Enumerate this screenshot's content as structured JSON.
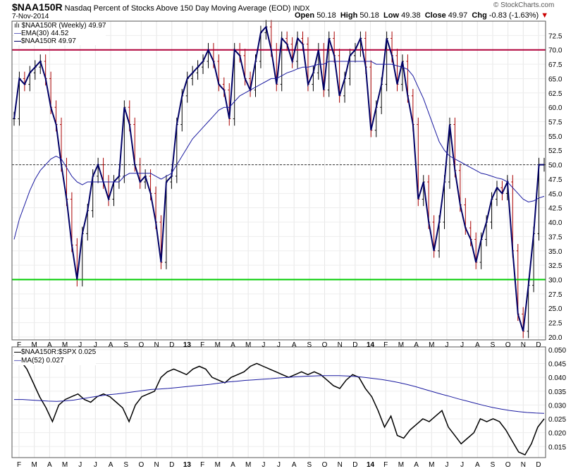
{
  "header": {
    "symbol": "$NAA150R",
    "description": "Nasdaq Percent of Stocks Above 150 Day Moving Average (EOD)",
    "exchange": "INDX",
    "date": "7-Nov-2014",
    "open_label": "Open",
    "open": "50.18",
    "high_label": "High",
    "high": "50.18",
    "low_label": "Low",
    "low": "49.38",
    "close_label": "Close",
    "close": "49.97",
    "chg_label": "Chg",
    "chg": "-0.83 (-1.63%)",
    "watermark": "© StockCharts.com"
  },
  "chart_data": [
    {
      "type": "ohlc-line",
      "legend": {
        "main": "$NAA150R (Weekly) 49.97",
        "ema": "EMA(30) 44.52",
        "line": "$NAA150R 49.97"
      },
      "colors": {
        "price": "#000066",
        "ema": "#1a1aa0",
        "resistance": "#b0003a",
        "support": "#00cc00",
        "bar_up": "#000000",
        "bar_down": "#aa0000"
      },
      "ylim": [
        19.5,
        75
      ],
      "y_ticks": [
        "72.5",
        "70.0",
        "67.5",
        "65.0",
        "62.5",
        "60.0",
        "57.5",
        "55.0",
        "52.5",
        "50.0",
        "47.5",
        "45.0",
        "42.5",
        "40.0",
        "37.5",
        "35.0",
        "32.5",
        "30.0",
        "27.5",
        "25.0",
        "22.5",
        "20.0"
      ],
      "horizontal_lines": {
        "resistance": 70,
        "support": 30,
        "reference_dashed": 50
      },
      "x_labels": [
        "F",
        "M",
        "A",
        "M",
        "J",
        "J",
        "A",
        "S",
        "O",
        "N",
        "D",
        "13",
        "F",
        "M",
        "A",
        "M",
        "J",
        "J",
        "A",
        "S",
        "O",
        "N",
        "D",
        "14",
        "F",
        "M",
        "A",
        "M",
        "J",
        "J",
        "A",
        "S",
        "O",
        "N",
        "D"
      ],
      "close": [
        58,
        65,
        64,
        66,
        67,
        68,
        65,
        60,
        57,
        50,
        44,
        36,
        30,
        38,
        42,
        48,
        50,
        47,
        44,
        47,
        48,
        60,
        57,
        50,
        47,
        48,
        45,
        40,
        33,
        47,
        48,
        57,
        62,
        65,
        66,
        67,
        68,
        70,
        68,
        64,
        63,
        58,
        70,
        69,
        65,
        63,
        68,
        73,
        74,
        70,
        64,
        72,
        71,
        68,
        72,
        71,
        64,
        66,
        70,
        63,
        72,
        69,
        62,
        65,
        69,
        70,
        72,
        67,
        56,
        60,
        64,
        72,
        69,
        64,
        68,
        62,
        57,
        44,
        47,
        40,
        35,
        40,
        47,
        57,
        49,
        43,
        39,
        37,
        33,
        37,
        40,
        44,
        46,
        45,
        47,
        35,
        24,
        21,
        29,
        38,
        50,
        50
      ],
      "ema": [
        37,
        40.5,
        43,
        45.5,
        47.5,
        49,
        50,
        51,
        51.5,
        51,
        49.5,
        48,
        47,
        46.5,
        47,
        47,
        47,
        47,
        47,
        47,
        47,
        48,
        48.5,
        48.5,
        48.5,
        48.5,
        48.5,
        48,
        47.5,
        48,
        48.5,
        50,
        51.5,
        53,
        54.5,
        55.5,
        56.5,
        57.5,
        58.5,
        59.5,
        60,
        60,
        61,
        62,
        62.5,
        63,
        63.5,
        64,
        64.5,
        65,
        65,
        65.5,
        66,
        66.3,
        66.7,
        67,
        67,
        67.2,
        67.5,
        67.5,
        68,
        68,
        68,
        68,
        68,
        68,
        68,
        68,
        68,
        67.5,
        67.5,
        67.5,
        67.5,
        67.2,
        67,
        66.6,
        65.5,
        63.5,
        61.5,
        59,
        56.5,
        54,
        52.5,
        51.5,
        51,
        50.5,
        50,
        49.5,
        49,
        48.5,
        48.3,
        48,
        47.7,
        47.5,
        47,
        46,
        45,
        44,
        43.5,
        43.7,
        44.2,
        44.5
      ]
    },
    {
      "type": "line",
      "legend": {
        "ratio": "$NAA150R:$SPX 0.025",
        "ma": "MA(52) 0.027"
      },
      "colors": {
        "ratio": "#000000",
        "ma": "#1a1aa0"
      },
      "ylim": [
        0.011,
        0.051
      ],
      "y_ticks": [
        "0.050",
        "0.045",
        "0.040",
        "0.035",
        "0.030",
        "0.025",
        "0.020",
        "0.015"
      ],
      "x_labels": [
        "F",
        "M",
        "A",
        "M",
        "J",
        "J",
        "A",
        "S",
        "O",
        "N",
        "D",
        "13",
        "F",
        "M",
        "A",
        "M",
        "J",
        "J",
        "A",
        "S",
        "O",
        "N",
        "D",
        "14",
        "F",
        "M",
        "A",
        "M",
        "J",
        "J",
        "A",
        "S",
        "O",
        "N",
        "D"
      ],
      "ratio": [
        0.048,
        0.046,
        0.043,
        0.038,
        0.033,
        0.029,
        0.024,
        0.03,
        0.032,
        0.033,
        0.034,
        0.032,
        0.031,
        0.033,
        0.034,
        0.033,
        0.031,
        0.029,
        0.024,
        0.03,
        0.033,
        0.034,
        0.035,
        0.04,
        0.042,
        0.043,
        0.042,
        0.041,
        0.043,
        0.044,
        0.043,
        0.04,
        0.039,
        0.038,
        0.04,
        0.041,
        0.042,
        0.044,
        0.045,
        0.044,
        0.043,
        0.042,
        0.041,
        0.04,
        0.041,
        0.042,
        0.041,
        0.042,
        0.041,
        0.039,
        0.037,
        0.036,
        0.039,
        0.041,
        0.04,
        0.036,
        0.033,
        0.028,
        0.022,
        0.026,
        0.019,
        0.018,
        0.021,
        0.023,
        0.025,
        0.024,
        0.026,
        0.028,
        0.022,
        0.019,
        0.016,
        0.018,
        0.02,
        0.025,
        0.024,
        0.025,
        0.024,
        0.021,
        0.017,
        0.013,
        0.012,
        0.016,
        0.022,
        0.025
      ],
      "ma": [
        0.032,
        0.032,
        0.0318,
        0.0316,
        0.0314,
        0.0313,
        0.0315,
        0.0318,
        0.0323,
        0.0328,
        0.0333,
        0.0337,
        0.034,
        0.0344,
        0.0348,
        0.0352,
        0.0356,
        0.0358,
        0.036,
        0.0363,
        0.0366,
        0.0369,
        0.0372,
        0.0375,
        0.0379,
        0.0383,
        0.0386,
        0.0389,
        0.0391,
        0.0393,
        0.0395,
        0.0398,
        0.04,
        0.0402,
        0.0404,
        0.0405,
        0.0406,
        0.0406,
        0.0406,
        0.0405,
        0.0403,
        0.04,
        0.0396,
        0.0392,
        0.0387,
        0.0381,
        0.0374,
        0.0366,
        0.0357,
        0.0348,
        0.0339,
        0.0331,
        0.0322,
        0.0314,
        0.0306,
        0.0298,
        0.0291,
        0.0285,
        0.028,
        0.0276,
        0.0273,
        0.0271,
        0.027
      ]
    }
  ]
}
